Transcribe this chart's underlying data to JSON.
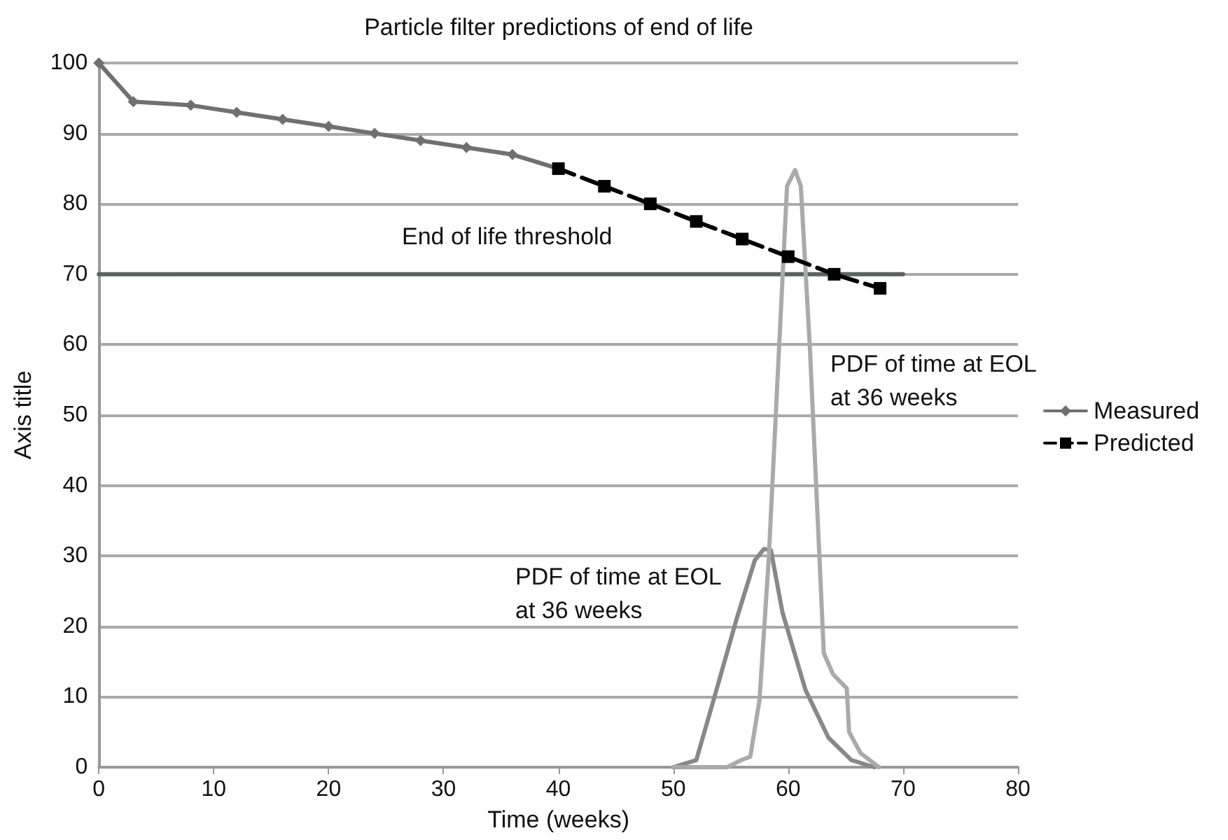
{
  "chart_data": {
    "type": "line",
    "title": "Particle filter predictions of end of life",
    "xlabel": "Time (weeks)",
    "ylabel": "Axis title",
    "xlim": [
      0,
      80
    ],
    "xticks": [
      0,
      10,
      20,
      30,
      40,
      50,
      60,
      70,
      80
    ],
    "ylim": [
      0,
      100
    ],
    "yticks": [
      0,
      10,
      20,
      30,
      40,
      50,
      60,
      70,
      80,
      90,
      100
    ],
    "grid": "y",
    "legend": "right",
    "series": [
      {
        "name": "Measured",
        "color": "#707070",
        "marker": "diamond",
        "line_style": "solid",
        "x": [
          0,
          3,
          8,
          12,
          16,
          20,
          24,
          28,
          32,
          36,
          40
        ],
        "values": [
          100,
          94.5,
          94,
          93,
          92,
          91,
          90,
          89,
          88,
          87,
          85
        ]
      },
      {
        "name": "Predicted",
        "color": "#000000",
        "marker": "square",
        "line_style": "dashed",
        "x": [
          40,
          44,
          48,
          52,
          56,
          60,
          64,
          68
        ],
        "values": [
          85,
          82.5,
          80,
          77.5,
          75,
          72.5,
          70,
          68
        ]
      },
      {
        "color": "#5a6262",
        "marker": "none",
        "line_style": "solid",
        "x": [
          0,
          70
        ],
        "values": [
          70,
          70
        ]
      },
      {
        "color": "#888888",
        "marker": "none",
        "line_style": "solid",
        "x": [
          50,
          52,
          53.5,
          55.5,
          57.1,
          57.9,
          58.5,
          59.5,
          61.5,
          63.5,
          65.5,
          67.5
        ],
        "values": [
          0,
          1,
          9.5,
          21,
          29.4,
          31,
          30.8,
          22,
          11,
          4.2,
          1,
          0
        ]
      },
      {
        "color": "#aaaaaa",
        "marker": "none",
        "line_style": "solid",
        "x": [
          50,
          54.7,
          55.9,
          56.7,
          57.5,
          58.3,
          59.1,
          59.9,
          60.6,
          61.1,
          61.9,
          63.1,
          63.9,
          65.1,
          65.3,
          66.3,
          67.9
        ],
        "values": [
          0,
          0,
          1,
          1.5,
          9.5,
          29.4,
          56,
          82.5,
          84.8,
          82.5,
          59.2,
          16.2,
          13.2,
          11.2,
          5,
          2,
          0
        ]
      }
    ],
    "annotations": [
      "End of life threshold",
      "PDF of time at EOL\nat 36 weeks",
      "PDF of time at EOL\nat 36 weeks"
    ]
  }
}
